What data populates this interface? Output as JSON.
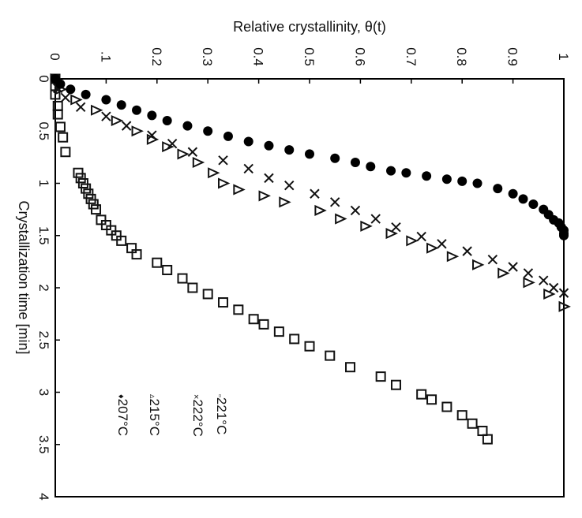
{
  "chart_data": {
    "type": "scatter",
    "orientation": "rotated-90-clockwise",
    "xlabel": "Crystallization time [min]",
    "ylabel": "Relative crystallinity, θ(t)",
    "xlim": [
      0,
      4
    ],
    "ylim": [
      0,
      1
    ],
    "x_ticks": [
      "0",
      "0.5",
      "1",
      "1.5",
      "2",
      "2.5",
      "3",
      "3.5",
      "4"
    ],
    "y_ticks": [
      "0",
      ".1",
      "0.2",
      "0.3",
      "0.4",
      "0.5",
      "0.6",
      "0.7",
      "0.8",
      "0.9",
      "1"
    ],
    "grid": false,
    "legend_position": "bottom-left",
    "series": [
      {
        "name": "221°C",
        "legend_label": "221°C",
        "legend_marker": "▫",
        "marker": "square",
        "x": [
          0.0,
          0.07,
          0.15,
          0.26,
          0.34,
          0.46,
          0.56,
          0.7,
          0.9,
          0.95,
          1.0,
          1.05,
          1.1,
          1.15,
          1.2,
          1.25,
          1.35,
          1.4,
          1.45,
          1.5,
          1.55,
          1.62,
          1.68,
          1.76,
          1.83,
          1.91,
          2.0,
          2.06,
          2.14,
          2.21,
          2.3,
          2.35,
          2.42,
          2.49,
          2.56,
          2.65,
          2.76,
          2.85,
          2.93,
          3.02,
          3.07,
          3.14,
          3.22,
          3.3,
          3.37,
          3.45
        ],
        "y": [
          0.0,
          0.0,
          0.0,
          0.005,
          0.005,
          0.01,
          0.015,
          0.02,
          0.045,
          0.05,
          0.055,
          0.06,
          0.065,
          0.07,
          0.075,
          0.08,
          0.09,
          0.1,
          0.11,
          0.12,
          0.13,
          0.15,
          0.16,
          0.2,
          0.22,
          0.25,
          0.27,
          0.3,
          0.33,
          0.36,
          0.39,
          0.41,
          0.44,
          0.47,
          0.5,
          0.54,
          0.58,
          0.64,
          0.67,
          0.72,
          0.74,
          0.77,
          0.8,
          0.82,
          0.84,
          0.85
        ]
      },
      {
        "name": "222°C",
        "legend_label": "222°C",
        "legend_marker": "×",
        "marker": "x",
        "x": [
          0.0,
          0.09,
          0.18,
          0.27,
          0.36,
          0.45,
          0.54,
          0.62,
          0.7,
          0.78,
          0.86,
          0.95,
          1.02,
          1.1,
          1.18,
          1.26,
          1.34,
          1.42,
          1.51,
          1.58,
          1.65,
          1.73,
          1.8,
          1.86,
          1.93,
          2.0,
          2.05
        ],
        "y": [
          0.0,
          0.005,
          0.02,
          0.05,
          0.1,
          0.14,
          0.19,
          0.23,
          0.27,
          0.33,
          0.38,
          0.42,
          0.46,
          0.51,
          0.55,
          0.59,
          0.63,
          0.67,
          0.72,
          0.76,
          0.81,
          0.86,
          0.9,
          0.93,
          0.96,
          0.98,
          1.0
        ]
      },
      {
        "name": "215°C",
        "legend_label": "215°C",
        "legend_marker": "▵",
        "marker": "triangle",
        "x": [
          0.0,
          0.1,
          0.2,
          0.3,
          0.4,
          0.5,
          0.58,
          0.65,
          0.72,
          0.8,
          0.9,
          1.0,
          1.06,
          1.12,
          1.18,
          1.26,
          1.34,
          1.41,
          1.48,
          1.55,
          1.62,
          1.7,
          1.78,
          1.86,
          1.95,
          2.06,
          2.18
        ],
        "y": [
          0.0,
          0.01,
          0.04,
          0.08,
          0.12,
          0.16,
          0.19,
          0.22,
          0.25,
          0.28,
          0.31,
          0.33,
          0.36,
          0.41,
          0.45,
          0.52,
          0.56,
          0.61,
          0.66,
          0.7,
          0.74,
          0.78,
          0.83,
          0.88,
          0.93,
          0.97,
          1.0
        ]
      },
      {
        "name": "207°C",
        "legend_label": "207°C",
        "legend_marker": "♦",
        "marker": "circle",
        "x": [
          0.0,
          0.05,
          0.1,
          0.15,
          0.2,
          0.25,
          0.3,
          0.35,
          0.4,
          0.45,
          0.5,
          0.55,
          0.6,
          0.64,
          0.68,
          0.72,
          0.76,
          0.8,
          0.84,
          0.88,
          0.9,
          0.93,
          0.96,
          0.98,
          1.0,
          1.05,
          1.1,
          1.15,
          1.2,
          1.25,
          1.3,
          1.35,
          1.38,
          1.42,
          1.45,
          1.48,
          1.5
        ],
        "y": [
          0.0,
          0.01,
          0.03,
          0.06,
          0.1,
          0.13,
          0.16,
          0.19,
          0.22,
          0.26,
          0.3,
          0.34,
          0.38,
          0.42,
          0.46,
          0.5,
          0.55,
          0.59,
          0.62,
          0.66,
          0.69,
          0.73,
          0.77,
          0.8,
          0.83,
          0.87,
          0.9,
          0.92,
          0.94,
          0.96,
          0.97,
          0.98,
          0.99,
          0.995,
          1.0,
          1.0,
          1.0
        ]
      }
    ]
  }
}
